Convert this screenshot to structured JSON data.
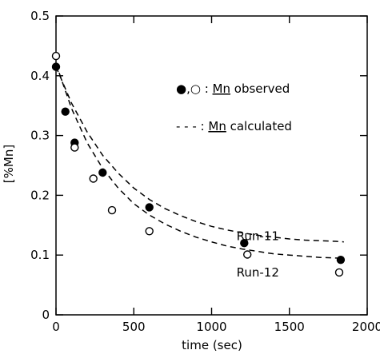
{
  "chart_data": {
    "type": "scatter",
    "xlabel": "time (sec)",
    "ylabel": "[%Mn]",
    "xlim": [
      0,
      2000
    ],
    "ylim": [
      0,
      0.5
    ],
    "x_ticks": [
      0,
      500,
      1000,
      1500,
      2000
    ],
    "y_ticks": [
      0,
      0.1,
      0.2,
      0.3,
      0.4,
      0.5
    ],
    "x_tick_labels": [
      "0",
      "500",
      "1000",
      "1500",
      "2000"
    ],
    "y_tick_labels": [
      "0",
      "0.1",
      "0.2",
      "0.3",
      "0.4",
      "0.5"
    ],
    "grid": false,
    "legend": {
      "placement": "top-right",
      "observed_prefix": "●,○ : ",
      "observed_underlined": "Mn",
      "observed_suffix": " observed",
      "calculated_prefix": "- - - : ",
      "calculated_underlined": "Mn",
      "calculated_suffix": " calculated"
    },
    "series": [
      {
        "name": "Run-11",
        "marker": "filled-circle",
        "x": [
          0,
          60,
          120,
          300,
          600,
          1210,
          1830
        ],
        "y": [
          0.415,
          0.34,
          0.288,
          0.238,
          0.18,
          0.12,
          0.092
        ]
      },
      {
        "name": "Run-12",
        "marker": "open-circle",
        "x": [
          0,
          120,
          240,
          360,
          600,
          1230,
          1820
        ],
        "y": [
          0.433,
          0.28,
          0.228,
          0.175,
          0.14,
          0.101,
          0.071
        ]
      }
    ],
    "calculated_curves": [
      {
        "name": "Run-11",
        "x": [
          0,
          100,
          200,
          300,
          400,
          500,
          600,
          700,
          800,
          900,
          1000,
          1100,
          1200,
          1300,
          1400,
          1500,
          1600,
          1700,
          1800,
          1850
        ],
        "y": [
          0.415,
          0.354,
          0.306,
          0.267,
          0.237,
          0.212,
          0.193,
          0.178,
          0.166,
          0.156,
          0.148,
          0.142,
          0.137,
          0.133,
          0.13,
          0.127,
          0.125,
          0.124,
          0.123,
          0.122
        ]
      },
      {
        "name": "Run-12",
        "x": [
          0,
          100,
          200,
          300,
          400,
          500,
          600,
          700,
          800,
          900,
          1000,
          1100,
          1200,
          1300,
          1400,
          1500,
          1600,
          1700,
          1800,
          1850
        ],
        "y": [
          0.42,
          0.345,
          0.288,
          0.245,
          0.212,
          0.186,
          0.167,
          0.152,
          0.14,
          0.13,
          0.122,
          0.115,
          0.11,
          0.106,
          0.102,
          0.1,
          0.098,
          0.096,
          0.095,
          0.094
        ]
      }
    ],
    "annotations": [
      {
        "text": "Run-11",
        "x": 1160,
        "y": 0.125
      },
      {
        "text": "Run-12",
        "x": 1160,
        "y": 0.064
      }
    ]
  }
}
